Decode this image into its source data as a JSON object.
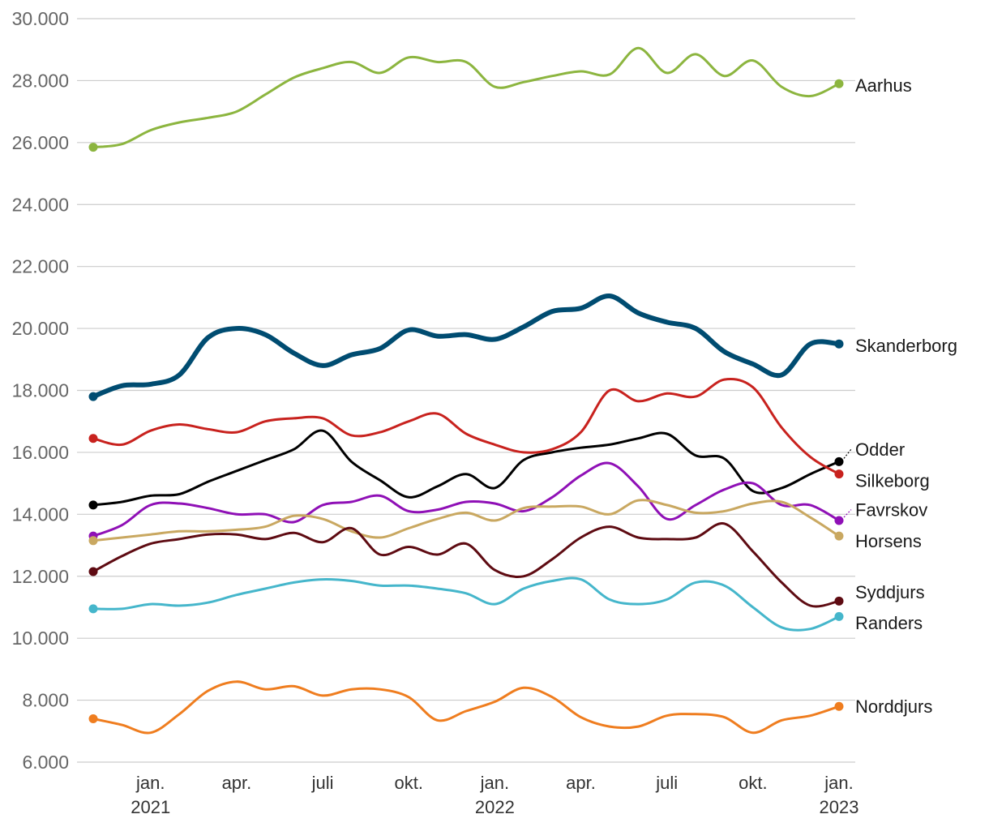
{
  "chart_data": {
    "type": "line",
    "title": "",
    "xlabel": "",
    "ylabel": "",
    "ylim": [
      6000,
      30000
    ],
    "y_ticks": [
      {
        "value": 6000,
        "label": "6.000"
      },
      {
        "value": 8000,
        "label": "8.000"
      },
      {
        "value": 10000,
        "label": "10.000"
      },
      {
        "value": 12000,
        "label": "12.000"
      },
      {
        "value": 14000,
        "label": "14.000"
      },
      {
        "value": 16000,
        "label": "16.000"
      },
      {
        "value": 18000,
        "label": "18.000"
      },
      {
        "value": 20000,
        "label": "20.000"
      },
      {
        "value": 22000,
        "label": "22.000"
      },
      {
        "value": 24000,
        "label": "24.000"
      },
      {
        "value": 26000,
        "label": "26.000"
      },
      {
        "value": 28000,
        "label": "28.000"
      },
      {
        "value": 30000,
        "label": "30.000"
      }
    ],
    "x_ticks": [
      {
        "index": 2,
        "label": "jan.",
        "year": "2021"
      },
      {
        "index": 5,
        "label": "apr.",
        "year": ""
      },
      {
        "index": 8,
        "label": "juli",
        "year": ""
      },
      {
        "index": 11,
        "label": "okt.",
        "year": ""
      },
      {
        "index": 14,
        "label": "jan.",
        "year": "2022"
      },
      {
        "index": 17,
        "label": "apr.",
        "year": ""
      },
      {
        "index": 20,
        "label": "juli",
        "year": ""
      },
      {
        "index": 23,
        "label": "okt.",
        "year": ""
      },
      {
        "index": 26,
        "label": "jan.",
        "year": "2023"
      }
    ],
    "x_count": 27,
    "series": [
      {
        "name": "Aarhus",
        "color": "#8cb53f",
        "emphasis": false,
        "values": [
          25850,
          25950,
          26400,
          26650,
          26800,
          27000,
          27550,
          28100,
          28400,
          28600,
          28250,
          28750,
          28600,
          28600,
          27800,
          27950,
          28150,
          28300,
          28200,
          29050,
          28250,
          28850,
          28150,
          28650,
          27800,
          27500,
          27900
        ]
      },
      {
        "name": "Skanderborg",
        "color": "#004c71",
        "emphasis": true,
        "values": [
          17800,
          18150,
          18200,
          18500,
          19700,
          20000,
          19800,
          19200,
          18800,
          19150,
          19350,
          19950,
          19750,
          19800,
          19650,
          20050,
          20550,
          20650,
          21050,
          20500,
          20200,
          20000,
          19250,
          18850,
          18500,
          19500,
          19500
        ]
      },
      {
        "name": "Odder",
        "color": "#000000",
        "emphasis": false,
        "values": [
          14300,
          14400,
          14600,
          14650,
          15050,
          15400,
          15750,
          16100,
          16700,
          15700,
          15100,
          14550,
          14900,
          15300,
          14850,
          15750,
          16000,
          16150,
          16250,
          16450,
          16600,
          15900,
          15800,
          14750,
          14850,
          15300,
          15700
        ]
      },
      {
        "name": "Silkeborg",
        "color": "#c8221e",
        "emphasis": false,
        "values": [
          16450,
          16250,
          16700,
          16900,
          16750,
          16650,
          17000,
          17100,
          17100,
          16550,
          16650,
          17000,
          17250,
          16600,
          16250,
          16000,
          16100,
          16650,
          18000,
          17650,
          17900,
          17800,
          18350,
          18100,
          16800,
          15850,
          15300
        ]
      },
      {
        "name": "Favrskov",
        "color": "#8f10b6",
        "emphasis": false,
        "values": [
          13300,
          13650,
          14300,
          14350,
          14200,
          14000,
          14000,
          13750,
          14300,
          14400,
          14600,
          14100,
          14150,
          14400,
          14350,
          14100,
          14550,
          15250,
          15650,
          14900,
          13850,
          14300,
          14800,
          15000,
          14300,
          14300,
          13800
        ]
      },
      {
        "name": "Horsens",
        "color": "#c9a861",
        "emphasis": false,
        "values": [
          13150,
          13250,
          13350,
          13450,
          13450,
          13500,
          13600,
          13950,
          13850,
          13450,
          13250,
          13550,
          13850,
          14050,
          13800,
          14200,
          14250,
          14250,
          14000,
          14450,
          14300,
          14050,
          14100,
          14350,
          14400,
          13900,
          13300
        ]
      },
      {
        "name": "Syddjurs",
        "color": "#5e0b12",
        "emphasis": false,
        "values": [
          12150,
          12650,
          13050,
          13200,
          13350,
          13350,
          13200,
          13400,
          13100,
          13550,
          12700,
          12950,
          12700,
          13050,
          12200,
          12000,
          12550,
          13250,
          13600,
          13250,
          13200,
          13250,
          13700,
          12800,
          11800,
          11050,
          11200
        ]
      },
      {
        "name": "Randers",
        "color": "#45b6cb",
        "emphasis": false,
        "values": [
          10950,
          10950,
          11100,
          11050,
          11150,
          11400,
          11600,
          11800,
          11900,
          11850,
          11700,
          11700,
          11600,
          11450,
          11100,
          11600,
          11850,
          11900,
          11250,
          11100,
          11250,
          11800,
          11700,
          11000,
          10350,
          10300,
          10700
        ]
      },
      {
        "name": "Norddjurs",
        "color": "#ef7d1f",
        "emphasis": false,
        "values": [
          7400,
          7200,
          6950,
          7550,
          8300,
          8600,
          8350,
          8450,
          8150,
          8350,
          8350,
          8100,
          7350,
          7650,
          7950,
          8400,
          8100,
          7450,
          7150,
          7150,
          7500,
          7550,
          7450,
          6950,
          7350,
          7500,
          7800
        ]
      }
    ],
    "end_labels": [
      {
        "series": "Aarhus",
        "label": "Aarhus",
        "label_value": 27850
      },
      {
        "series": "Skanderborg",
        "label": "Skanderborg",
        "label_value": 19450
      },
      {
        "series": "Odder",
        "label": "Odder",
        "label_value": 16100
      },
      {
        "series": "Silkeborg",
        "label": "Silkeborg",
        "label_value": 15100
      },
      {
        "series": "Favrskov",
        "label": "Favrskov",
        "label_value": 14150
      },
      {
        "series": "Horsens",
        "label": "Horsens",
        "label_value": 13150
      },
      {
        "series": "Syddjurs",
        "label": "Syddjurs",
        "label_value": 11500
      },
      {
        "series": "Randers",
        "label": "Randers",
        "label_value": 10500
      },
      {
        "series": "Norddjurs",
        "label": "Norddjurs",
        "label_value": 7800
      }
    ]
  }
}
